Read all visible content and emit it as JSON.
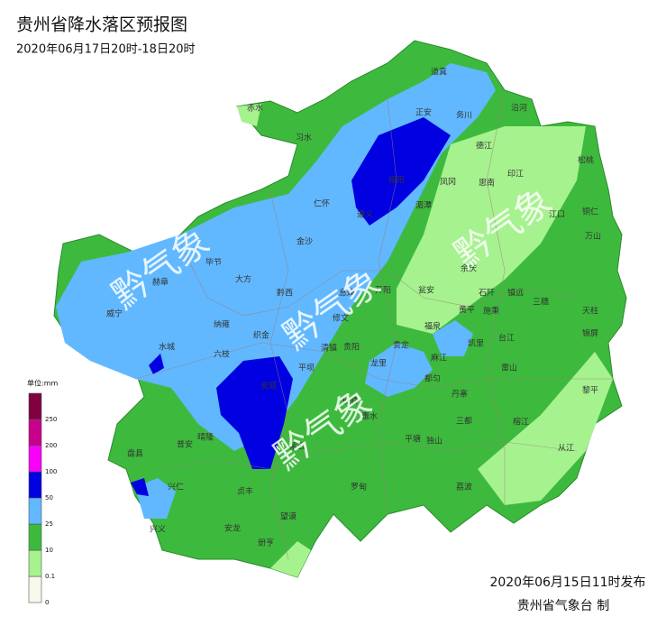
{
  "header": {
    "title": "贵州省降水落区预报图",
    "subtitle": "2020年06月17日20时-18日20时"
  },
  "watermark": "黔气象",
  "legend": {
    "title": "单位:mm",
    "items": [
      {
        "label": "0",
        "color": "#f7f7ea"
      },
      {
        "label": "0.1",
        "color": "#a6f28f"
      },
      {
        "label": "10",
        "color": "#3dba3d"
      },
      {
        "label": "25",
        "color": "#61b8ff"
      },
      {
        "label": "50",
        "color": "#0000e1"
      },
      {
        "label": "100",
        "color": "#fa00fa"
      },
      {
        "label": "200",
        "color": "#c8008c"
      },
      {
        "label": "250",
        "color": "#800040"
      }
    ]
  },
  "places": [
    "道真",
    "正安",
    "务川",
    "沿河",
    "赤水",
    "习水",
    "德江",
    "松桃",
    "印江",
    "思南",
    "江口",
    "铜仁",
    "万山",
    "仁怀",
    "绥阳",
    "凤冈",
    "湄潭",
    "遵义",
    "金沙",
    "毕节",
    "大方",
    "黔西",
    "赫章",
    "威宁",
    "纳雍",
    "织金",
    "修文",
    "息烽",
    "开阳",
    "瓮安",
    "余庆",
    "石阡",
    "镇远",
    "三穗",
    "天柱",
    "施秉",
    "黄平",
    "台江",
    "锦屏",
    "黎平",
    "雷山",
    "榕江",
    "从江",
    "三都",
    "都匀",
    "丹寨",
    "凯里",
    "麻江",
    "福泉",
    "贵定",
    "龙里",
    "贵阳",
    "清镇",
    "平坝",
    "安顺",
    "六枝",
    "水城",
    "普安",
    "晴隆",
    "盘县",
    "兴仁",
    "兴义",
    "安龙",
    "贞丰",
    "册亨",
    "望谟",
    "罗甸",
    "平塘",
    "独山",
    "荔波",
    "长顺",
    "惠水",
    "紫云"
  ],
  "footer": {
    "issued": "2020年06月15日11时发布",
    "issuer": "贵州省气象台 制"
  }
}
